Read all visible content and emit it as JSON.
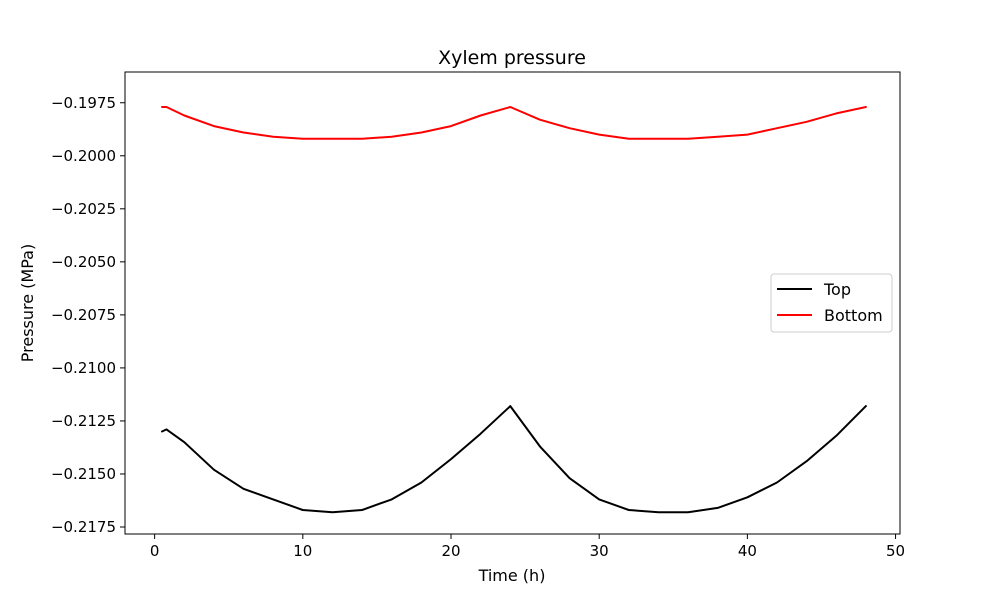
{
  "chart_data": {
    "type": "line",
    "title": "Xylem pressure",
    "xlabel": "Time (h)",
    "ylabel": "Pressure (MPa)",
    "xlim": [
      -2.0,
      50.3
    ],
    "ylim": [
      -0.21783,
      -0.19605
    ],
    "x_ticks": [
      0,
      10,
      20,
      30,
      40,
      50
    ],
    "y_ticks": [
      -0.1975,
      -0.2,
      -0.2025,
      -0.205,
      -0.2075,
      -0.21,
      -0.2125,
      -0.215,
      -0.2175
    ],
    "y_tick_labels": [
      "−0.1975",
      "−0.2000",
      "−0.2025",
      "−0.2050",
      "−0.2075",
      "−0.2100",
      "−0.2125",
      "−0.2150",
      "−0.2175"
    ],
    "grid": false,
    "legend_position": "center-right",
    "series": [
      {
        "name": "Top",
        "color": "#000000",
        "x": [
          0.5,
          0.8,
          2,
          4,
          6,
          8,
          10,
          12,
          14,
          16,
          18,
          20,
          22,
          24,
          26,
          28,
          30,
          32,
          34,
          36,
          38,
          40,
          42,
          44,
          46,
          48
        ],
        "y": [
          -0.213,
          -0.2129,
          -0.2135,
          -0.2148,
          -0.2157,
          -0.2162,
          -0.2167,
          -0.2168,
          -0.2167,
          -0.2162,
          -0.2154,
          -0.2143,
          -0.2131,
          -0.2118,
          -0.2137,
          -0.2152,
          -0.2162,
          -0.2167,
          -0.2168,
          -0.2168,
          -0.2166,
          -0.2161,
          -0.2154,
          -0.2144,
          -0.2132,
          -0.2118
        ]
      },
      {
        "name": "Bottom",
        "color": "#ff0000",
        "x": [
          0.5,
          0.8,
          2,
          4,
          6,
          8,
          10,
          12,
          14,
          16,
          18,
          20,
          22,
          24,
          26,
          28,
          30,
          32,
          34,
          36,
          38,
          40,
          42,
          44,
          46,
          48
        ],
        "y": [
          -0.1977,
          -0.1977,
          -0.1981,
          -0.1986,
          -0.1989,
          -0.1991,
          -0.1992,
          -0.1992,
          -0.1992,
          -0.1991,
          -0.1989,
          -0.1986,
          -0.1981,
          -0.1977,
          -0.1983,
          -0.1987,
          -0.199,
          -0.1992,
          -0.1992,
          -0.1992,
          -0.1991,
          -0.199,
          -0.1987,
          -0.1984,
          -0.198,
          -0.1977
        ]
      }
    ]
  }
}
